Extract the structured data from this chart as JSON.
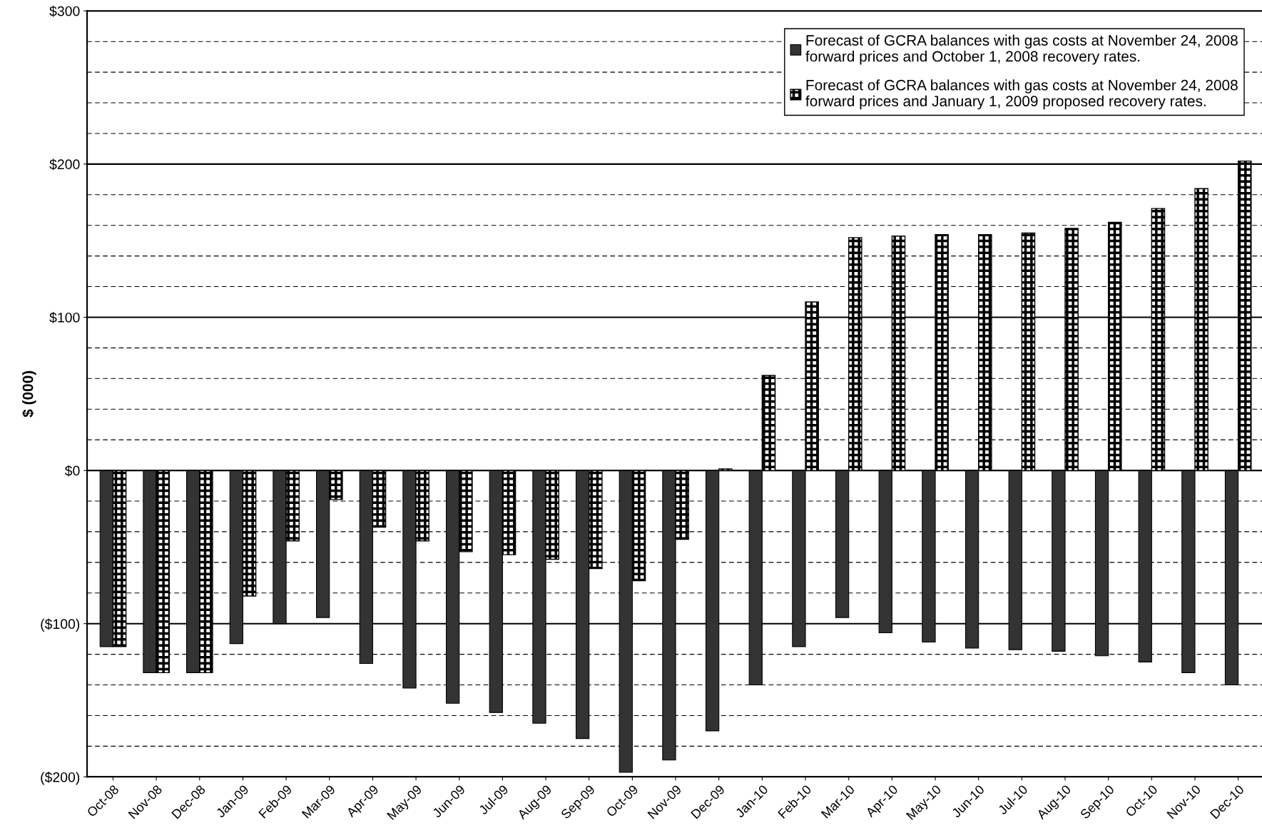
{
  "chart_data": {
    "type": "bar",
    "ylabel": "$ (000)",
    "categories": [
      "Oct-08",
      "Nov-08",
      "Dec-08",
      "Jan-09",
      "Feb-09",
      "Mar-09",
      "Apr-09",
      "May-09",
      "Jun-09",
      "Jul-09",
      "Aug-09",
      "Sep-09",
      "Oct-09",
      "Nov-09",
      "Dec-09",
      "Jan-10",
      "Feb-10",
      "Mar-10",
      "Apr-10",
      "May-10",
      "Jun-10",
      "Jul-10",
      "Aug-10",
      "Sep-10",
      "Oct-10",
      "Nov-10",
      "Dec-10"
    ],
    "series": [
      {
        "name": "Forecast of GCRA balances with gas costs at November 24, 2008 forward prices and October 1, 2008 recovery rates.",
        "color": "#333333",
        "values": [
          -115,
          -132,
          -132,
          -113,
          -100,
          -96,
          -126,
          -142,
          -152,
          -158,
          -165,
          -175,
          -197,
          -189,
          -170,
          -140,
          -115,
          -96,
          -106,
          -112,
          -116,
          -117,
          -118,
          -121,
          -125,
          -132,
          -140
        ]
      },
      {
        "name": "Forecast of GCRA balances with gas costs at November 24, 2008 forward prices and January 1, 2009 proposed recovery rates.",
        "color": "#000000",
        "values": [
          -115,
          -132,
          -132,
          -82,
          -46,
          -19,
          -37,
          -46,
          -53,
          -55,
          -58,
          -64,
          -72,
          -45,
          1,
          62,
          110,
          152,
          153,
          154,
          154,
          155,
          158,
          162,
          171,
          184,
          202
        ]
      }
    ],
    "ylim": [
      -200,
      300
    ],
    "yticks": [
      {
        "value": -200,
        "label": "($200)"
      },
      {
        "value": -180,
        "label": null
      },
      {
        "value": -160,
        "label": null
      },
      {
        "value": -140,
        "label": null
      },
      {
        "value": -120,
        "label": null
      },
      {
        "value": -100,
        "label": "($100)"
      },
      {
        "value": -80,
        "label": null
      },
      {
        "value": -60,
        "label": null
      },
      {
        "value": -40,
        "label": null
      },
      {
        "value": -20,
        "label": null
      },
      {
        "value": 0,
        "label": "$0"
      },
      {
        "value": 20,
        "label": null
      },
      {
        "value": 40,
        "label": null
      },
      {
        "value": 60,
        "label": null
      },
      {
        "value": 80,
        "label": null
      },
      {
        "value": 100,
        "label": "$100"
      },
      {
        "value": 120,
        "label": null
      },
      {
        "value": 140,
        "label": null
      },
      {
        "value": 160,
        "label": null
      },
      {
        "value": 180,
        "label": null
      },
      {
        "value": 200,
        "label": "$200"
      },
      {
        "value": 220,
        "label": null
      },
      {
        "value": 240,
        "label": null
      },
      {
        "value": 260,
        "label": null
      },
      {
        "value": 280,
        "label": null
      },
      {
        "value": 300,
        "label": "$300"
      }
    ],
    "grid": "y",
    "legend": "top right"
  }
}
